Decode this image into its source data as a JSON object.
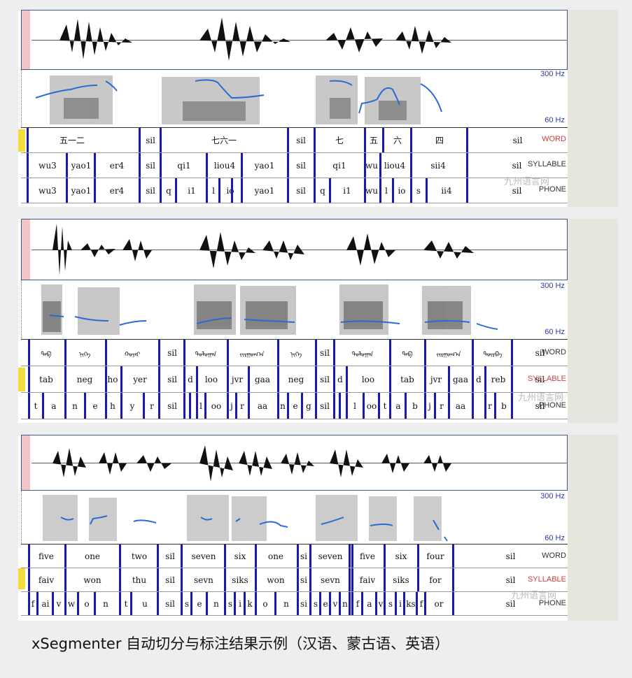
{
  "caption": "xSegmenter 自动切分与标注结果示例（汉语、蒙古语、英语）",
  "watermark": "九州语言网",
  "freq_labels": {
    "high": "300 Hz",
    "low": "60 Hz"
  },
  "tier_labels": {
    "word": "WORD",
    "syllable": "SYLLABLE",
    "phone": "PHONE"
  },
  "colors": {
    "boundary": "#1a1aa8",
    "pitch": "#2a6ad6",
    "word_label_red": "#d04040",
    "syllable_label_red": "#d04040",
    "tier_label_blue": "#2b3a9e",
    "highlight": "#f2de3a"
  },
  "panels": [
    {
      "language": "Chinese",
      "word": [
        "五一二",
        "sil",
        "七六一",
        "sil",
        "七",
        "五",
        "六",
        "四",
        "sil"
      ],
      "syllable": [
        "wu3",
        "yao1",
        "er4",
        "sil",
        "qi1",
        "liou4",
        "yao1",
        "sil",
        "qi1",
        "wu",
        "liou4",
        "sii4",
        "sil"
      ],
      "phone": [
        "wu3",
        "yao1",
        "er4",
        "sil",
        "q",
        "i1",
        "l",
        "io",
        "yao1",
        "sil",
        "q",
        "i1",
        "wu",
        "l",
        "io",
        "s",
        "ii4",
        "sil"
      ]
    },
    {
      "language": "Mongolian",
      "word": [
        "ᠲᠠᠪ",
        "ᠨᠢᠭᠡ",
        "ᠬᠣᠶᠠᠷ",
        "sil",
        "ᠳᠣᠯᠣᠭᠠᠨ",
        "ᠵᠢᠷᠭᠤᠭ᠎ᠠ",
        "ᠨᠢᠭᠡ",
        "sil",
        "ᠳᠣᠯᠣᠭᠠᠨ",
        "ᠲᠠᠪ",
        "ᠵᠢᠷᠭᠤᠭ᠎ᠠ",
        "ᠳᠥᠷᠪᠡ",
        "sil"
      ],
      "syllable": [
        "tab",
        "neg",
        "ho",
        "yer",
        "sil",
        "d",
        "loo",
        "jvr",
        "gaa",
        "neg",
        "sil",
        "d",
        "loo",
        "tab",
        "jvr",
        "gaa",
        "d",
        "reb",
        "sil"
      ],
      "phone": [
        "t",
        "a",
        "n",
        "e",
        "h",
        "y",
        "r",
        "sil",
        "l",
        "oo",
        "j",
        "r",
        "aa",
        "n",
        "e",
        "g",
        "sil",
        "l",
        "oo",
        "t",
        "a",
        "b",
        "j",
        "r",
        "aa",
        "r",
        "b",
        "sil"
      ]
    },
    {
      "language": "English",
      "word": [
        "five",
        "one",
        "two",
        "sil",
        "seven",
        "six",
        "one",
        "si",
        "seven",
        "five",
        "six",
        "four",
        "sil"
      ],
      "syllable": [
        "faiv",
        "won",
        "thu",
        "sil",
        "sevn",
        "siks",
        "won",
        "si",
        "sevn",
        "faiv",
        "siks",
        "for",
        "sil"
      ],
      "phone": [
        "f",
        "ai",
        "v",
        "w",
        "o",
        "n",
        "t",
        "u",
        "sil",
        "s",
        "e",
        "n",
        "s",
        "i",
        "k",
        "o",
        "n",
        "si",
        "s",
        "e",
        "v",
        "n",
        "f",
        "a",
        "v",
        "s",
        "i",
        "ks",
        "f",
        "or",
        "sil"
      ]
    }
  ]
}
